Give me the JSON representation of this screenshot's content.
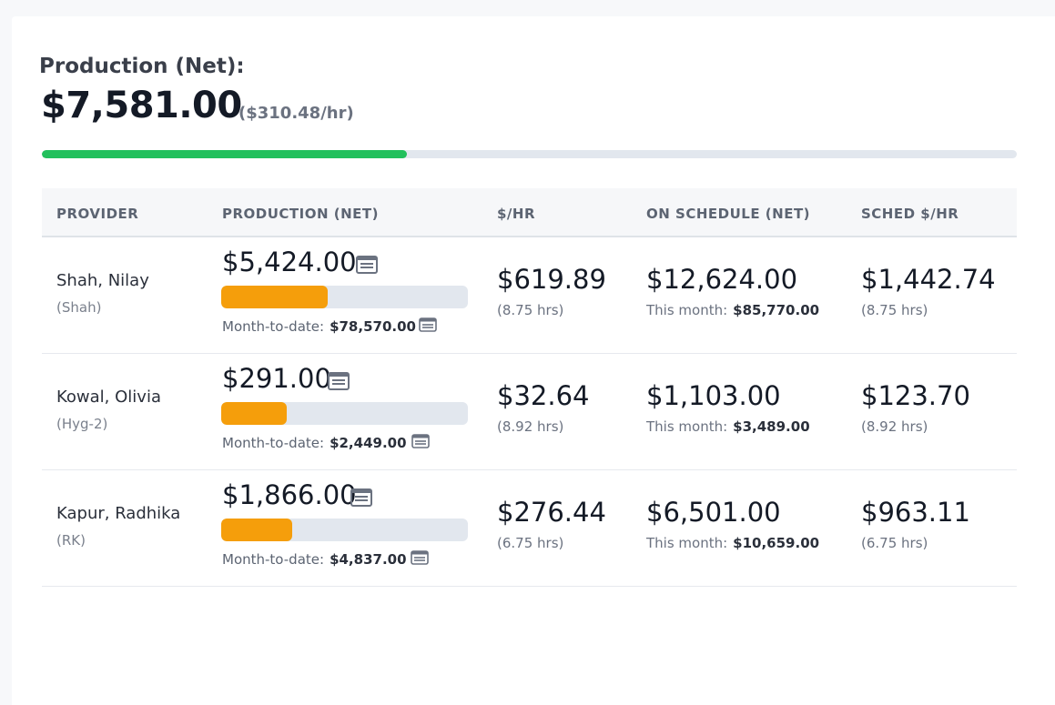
{
  "summary": {
    "label": "Production (Net):",
    "total": "$7,581.00",
    "rate": "($310.48/hr)",
    "progress": 0.374
  },
  "table": {
    "headers": [
      "PROVIDER",
      "PRODUCTION (NET)",
      "$/HR",
      "ON SCHEDULE (NET)",
      "SCHED $/HR"
    ],
    "rows": [
      {
        "name": "Shah, Nilay",
        "code": "(Shah)",
        "production": "$5,424.00",
        "production_progress": 0.43,
        "mtd_label": "Month-to-date:",
        "mtd_value": "$78,570.00",
        "per_hr": "$619.89",
        "per_hr_hours": "(8.75 hrs)",
        "on_schedule": "$12,624.00",
        "month_label": "This month:",
        "month_value": "$85,770.00",
        "sched_per_hr": "$1,442.74",
        "sched_hours": "(8.75 hrs)"
      },
      {
        "name": "Kowal, Olivia",
        "code": "(Hyg-2)",
        "production": "$291.00",
        "production_progress": 0.265,
        "mtd_label": "Month-to-date:",
        "mtd_value": "$2,449.00",
        "per_hr": "$32.64",
        "per_hr_hours": "(8.92 hrs)",
        "on_schedule": "$1,103.00",
        "month_label": "This month:",
        "month_value": "$3,489.00",
        "sched_per_hr": "$123.70",
        "sched_hours": "(8.92 hrs)"
      },
      {
        "name": "Kapur, Radhika",
        "code": "(RK)",
        "production": "$1,866.00",
        "production_progress": 0.287,
        "mtd_label": "Month-to-date:",
        "mtd_value": "$4,837.00",
        "per_hr": "$276.44",
        "per_hr_hours": "(6.75 hrs)",
        "on_schedule": "$6,501.00",
        "month_label": "This month:",
        "month_value": "$10,659.00",
        "sched_per_hr": "$963.11",
        "sched_hours": "(6.75 hrs)"
      }
    ]
  },
  "icons": {
    "detail": "list-doc-icon"
  },
  "colors": {
    "total_bar": "#22c05c",
    "provider_bar": "#f59e0b",
    "track": "#e2e7ee"
  }
}
